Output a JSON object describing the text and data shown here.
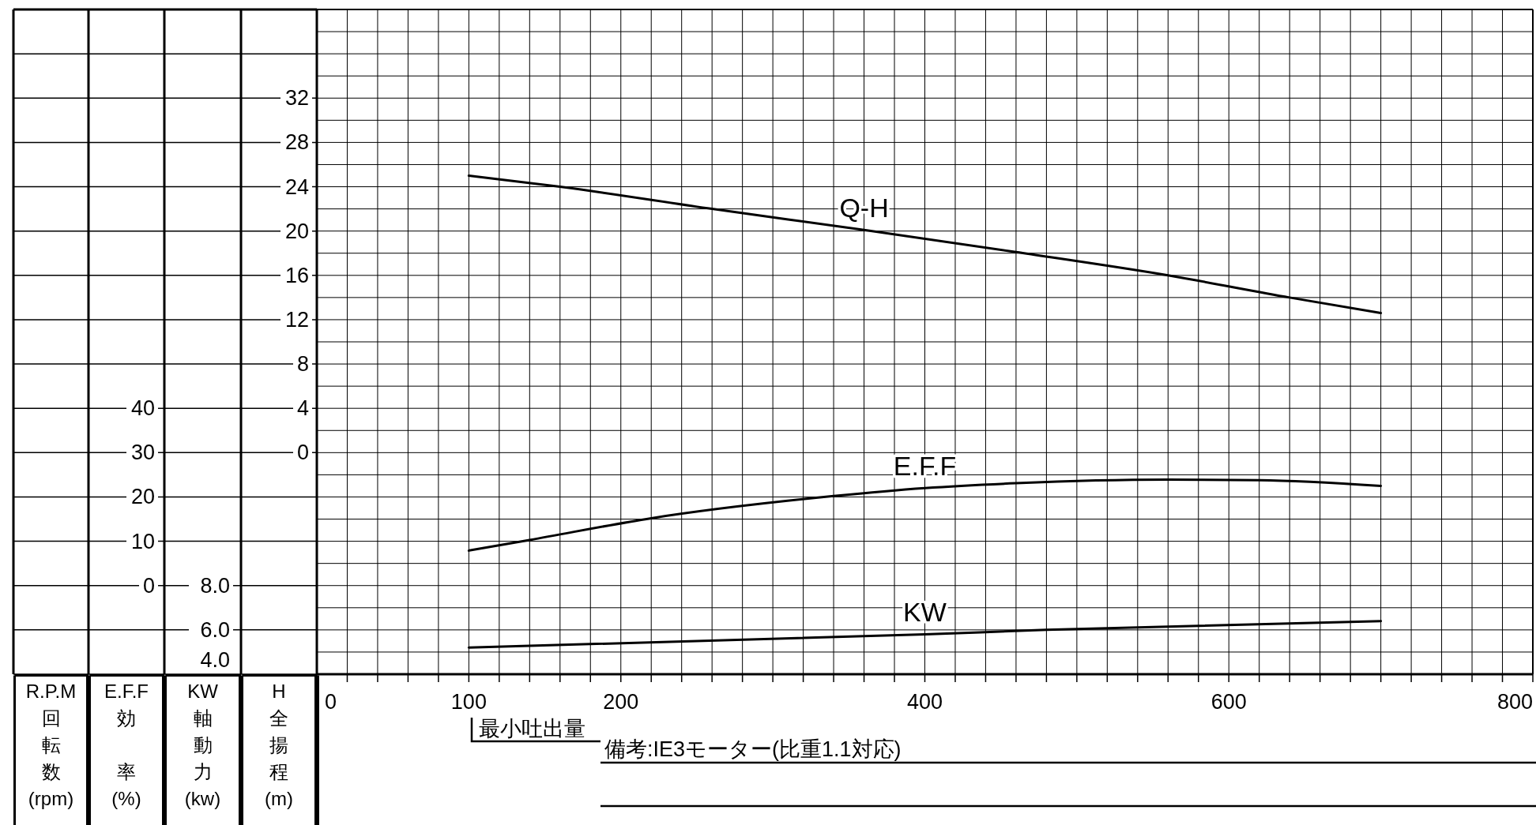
{
  "chart_data": {
    "type": "line",
    "xlim": [
      0,
      800
    ],
    "xticks": [
      0,
      {
        "value": 20,
        "label": null
      },
      {
        "value": 40,
        "label": null
      },
      {
        "value": 60,
        "label": null
      },
      {
        "value": 80,
        "label": null
      },
      100,
      {
        "value": 120,
        "label": null
      },
      {
        "value": 140,
        "label": null
      },
      {
        "value": 160,
        "label": null
      },
      {
        "value": 180,
        "label": null
      },
      200,
      {
        "value": 220,
        "label": null
      },
      {
        "value": 240,
        "label": null
      },
      {
        "value": 260,
        "label": null
      },
      {
        "value": 280,
        "label": null
      },
      {
        "value": 300,
        "label": null
      },
      {
        "value": 320,
        "label": null
      },
      {
        "value": 340,
        "label": null
      },
      {
        "value": 360,
        "label": null
      },
      {
        "value": 380,
        "label": null
      },
      400,
      {
        "value": 420,
        "label": null
      },
      {
        "value": 440,
        "label": null
      },
      {
        "value": 460,
        "label": null
      },
      {
        "value": 480,
        "label": null
      },
      {
        "value": 500,
        "label": null
      },
      {
        "value": 520,
        "label": null
      },
      {
        "value": 540,
        "label": null
      },
      {
        "value": 560,
        "label": null
      },
      {
        "value": 580,
        "label": null
      },
      600,
      {
        "value": 620,
        "label": null
      },
      {
        "value": 640,
        "label": null
      },
      {
        "value": 660,
        "label": null
      },
      {
        "value": 680,
        "label": null
      },
      {
        "value": 700,
        "label": null
      },
      {
        "value": 720,
        "label": null
      },
      {
        "value": 740,
        "label": null
      },
      {
        "value": 760,
        "label": null
      },
      {
        "value": 780,
        "label": null
      },
      800
    ],
    "ylabel": "H 全揚程 (m)",
    "ylim": [
      -20,
      40
    ],
    "yticks": [
      {
        "value": -20,
        "label": null
      },
      {
        "value": -18,
        "label": null
      },
      {
        "value": -16,
        "label": null
      },
      {
        "value": -14,
        "label": null
      },
      {
        "value": -12,
        "label": null
      },
      {
        "value": -10,
        "label": null
      },
      {
        "value": -8,
        "label": null
      },
      {
        "value": -6,
        "label": null
      },
      {
        "value": -4,
        "label": null
      },
      {
        "value": -2,
        "label": null
      },
      0,
      {
        "value": 2,
        "label": null
      },
      4,
      {
        "value": 6,
        "label": null
      },
      8,
      {
        "value": 10,
        "label": null
      },
      12,
      {
        "value": 14,
        "label": null
      },
      16,
      {
        "value": 18,
        "label": null
      },
      20,
      {
        "value": 22,
        "label": null
      },
      24,
      {
        "value": 26,
        "label": null
      },
      28,
      {
        "value": 30,
        "label": null
      },
      32,
      {
        "value": 34,
        "label": null
      },
      {
        "value": 36,
        "label": null
      },
      {
        "value": 38,
        "label": null
      },
      {
        "value": 40,
        "label": null
      }
    ],
    "y2label": "E.F.F 効率 (%)",
    "y2lim": [
      -20,
      130
    ],
    "y2ticks": [
      0,
      10,
      20,
      30,
      40
    ],
    "y3label": "KW 軸動力 (kw)",
    "y3lim": [
      4,
      34
    ],
    "y3ticks": [
      {
        "value": 4,
        "label": "4.0"
      },
      {
        "value": 6,
        "label": "6.0"
      },
      {
        "value": 8,
        "label": "8.0"
      }
    ],
    "grid": true,
    "line_style": "solid",
    "series": [
      {
        "name": "Q-H",
        "color": "#000000",
        "axis": "y",
        "x": [
          100,
          160,
          260,
          360,
          460,
          560,
          640,
          700
        ],
        "values": [
          25.0,
          24.0,
          22.0,
          20.1,
          18.1,
          16.0,
          14.0,
          12.6
        ]
      },
      {
        "name": "E.F.F",
        "color": "#000000",
        "axis": "y2",
        "x": [
          100,
          140,
          220,
          340,
          400,
          460,
          560,
          620,
          700
        ],
        "values": [
          7.9,
          10.3,
          15.2,
          20.2,
          22.0,
          23.1,
          23.9,
          23.8,
          22.5
        ]
      },
      {
        "name": "KW",
        "color": "#000000",
        "axis": "y3",
        "x": [
          100,
          400,
          480,
          700
        ],
        "values": [
          5.2,
          5.8,
          6.0,
          6.4
        ]
      }
    ],
    "annotations": [
      "R.P.M 回転数 (rpm)",
      "最小吐出量",
      "備考:IE3モーター(比重1.1対応)"
    ]
  }
}
